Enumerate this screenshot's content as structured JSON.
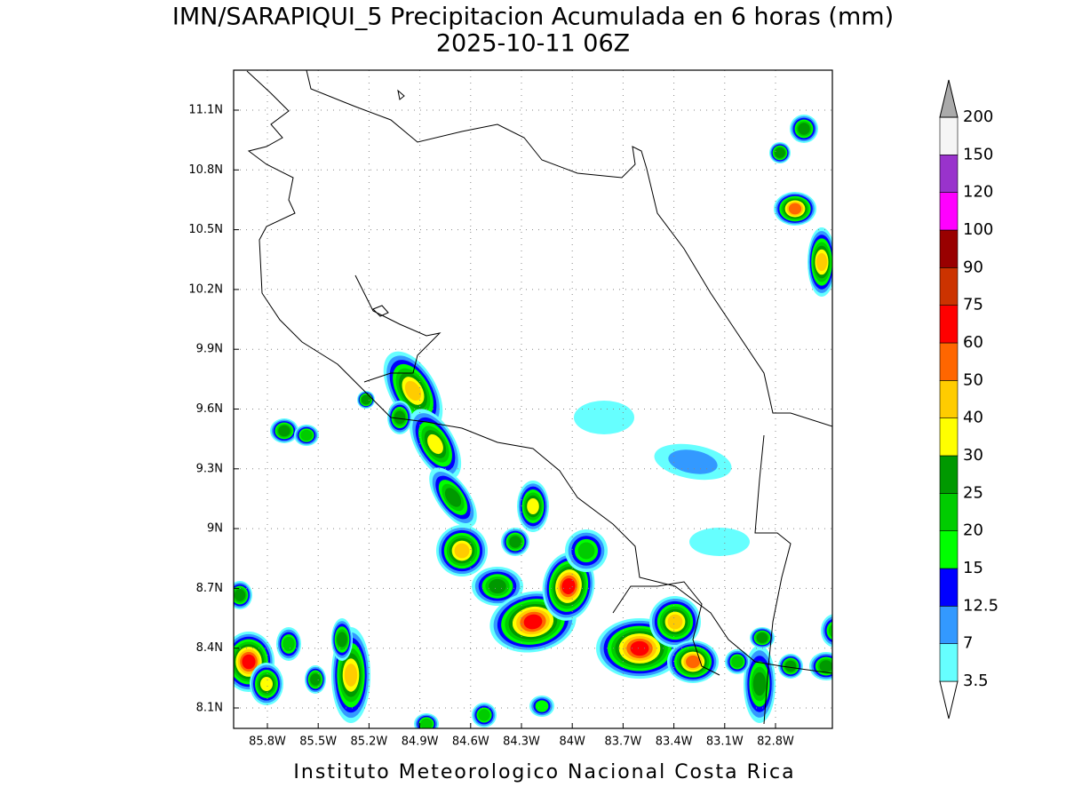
{
  "header": {
    "title": "IMN/SARAPIQUI_5 Precipitacion Acumulada en 6 horas (mm)",
    "subtitle": "2025-10-11 06Z"
  },
  "map": {
    "lat_labels": [
      "11.1N",
      "10.8N",
      "10.5N",
      "10.2N",
      "9.9N",
      "9.6N",
      "9.3N",
      "9N",
      "8.7N",
      "8.4N",
      "8.1N"
    ],
    "lon_labels": [
      "85.8W",
      "85.5W",
      "85.2W",
      "84.9W",
      "84.6W",
      "84.3W",
      "84W",
      "83.7W",
      "83.4W",
      "83.1W",
      "82.8W"
    ]
  },
  "colorbar": {
    "levels": [
      3.5,
      7,
      12.5,
      15,
      20,
      25,
      30,
      40,
      50,
      60,
      75,
      90,
      100,
      120,
      150,
      200
    ],
    "colors": [
      "#ffffff",
      "#66ffff",
      "#3399ff",
      "#0000ff",
      "#00ff00",
      "#00cc00",
      "#009900",
      "#ffff00",
      "#ffcc00",
      "#ff6600",
      "#ff0000",
      "#cc3300",
      "#990000",
      "#ff00ff",
      "#9933cc",
      "#f5f5f5",
      "#aaaaaa"
    ]
  },
  "footer": {
    "credit": "Instituto Meteorologico Nacional Costa Rica"
  }
}
